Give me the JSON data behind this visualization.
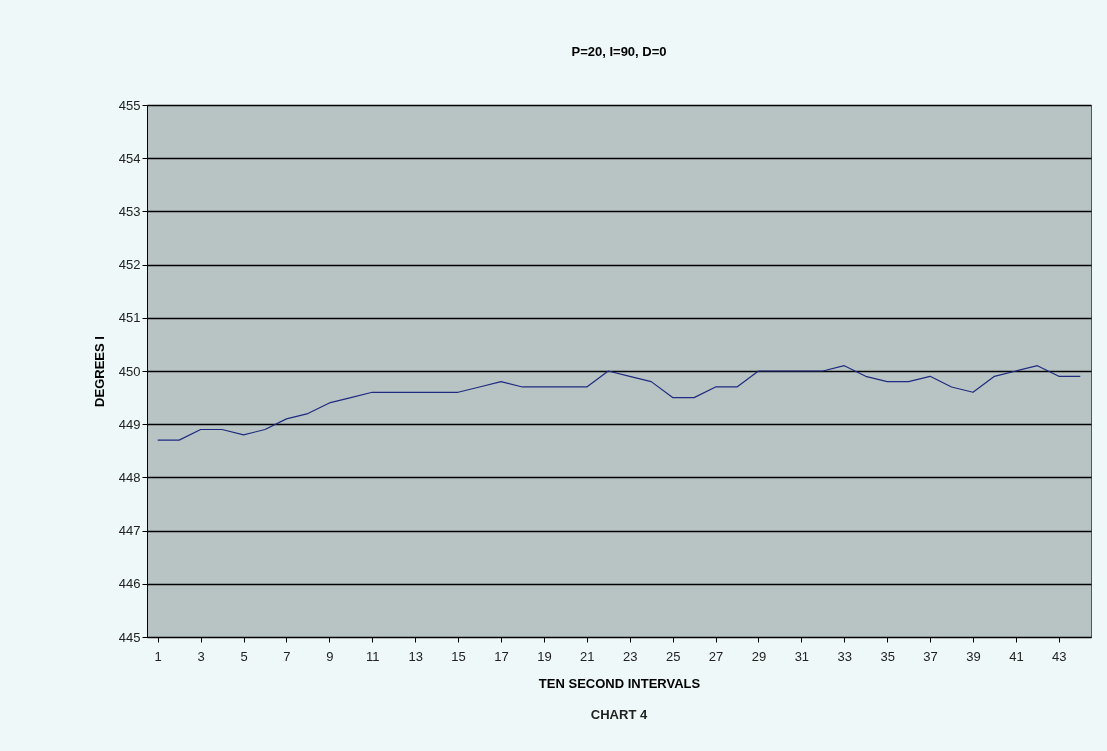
{
  "chart_data": {
    "type": "line",
    "title": "P=20, I=90, D=0",
    "xlabel": "TEN SECOND INTERVALS",
    "ylabel": "DEGREES I",
    "annotations": [
      "CHART 4"
    ],
    "x": [
      1,
      2,
      3,
      4,
      5,
      6,
      7,
      8,
      9,
      10,
      11,
      12,
      13,
      14,
      15,
      16,
      17,
      18,
      19,
      20,
      21,
      22,
      23,
      24,
      25,
      26,
      27,
      28,
      29,
      30,
      31,
      32,
      33,
      34,
      35,
      36,
      37,
      38,
      39,
      40,
      41,
      42,
      43,
      44
    ],
    "series": [
      {
        "color": "#1f2a80",
        "values": [
          448.7,
          448.7,
          448.9,
          448.9,
          448.8,
          448.9,
          449.1,
          449.2,
          449.4,
          449.5,
          449.6,
          449.6,
          449.6,
          449.6,
          449.6,
          449.7,
          449.8,
          449.7,
          449.7,
          449.7,
          449.7,
          450.0,
          449.9,
          449.8,
          449.5,
          449.5,
          449.7,
          449.7,
          450.0,
          450.0,
          450.0,
          450.0,
          450.1,
          449.9,
          449.8,
          449.8,
          449.9,
          449.7,
          449.6,
          449.9,
          450.0,
          450.1,
          449.9,
          449.9
        ]
      }
    ],
    "xlim": [
      0.5,
      44.5
    ],
    "xticks": [
      1,
      3,
      5,
      7,
      9,
      11,
      13,
      15,
      17,
      19,
      21,
      23,
      25,
      27,
      29,
      31,
      33,
      35,
      37,
      39,
      41,
      43
    ],
    "ylim": [
      445,
      455
    ],
    "yticks": [
      445,
      446,
      447,
      448,
      449,
      450,
      451,
      452,
      453,
      454,
      455
    ],
    "grid": "y",
    "marker": "none",
    "line_style": "solid"
  }
}
